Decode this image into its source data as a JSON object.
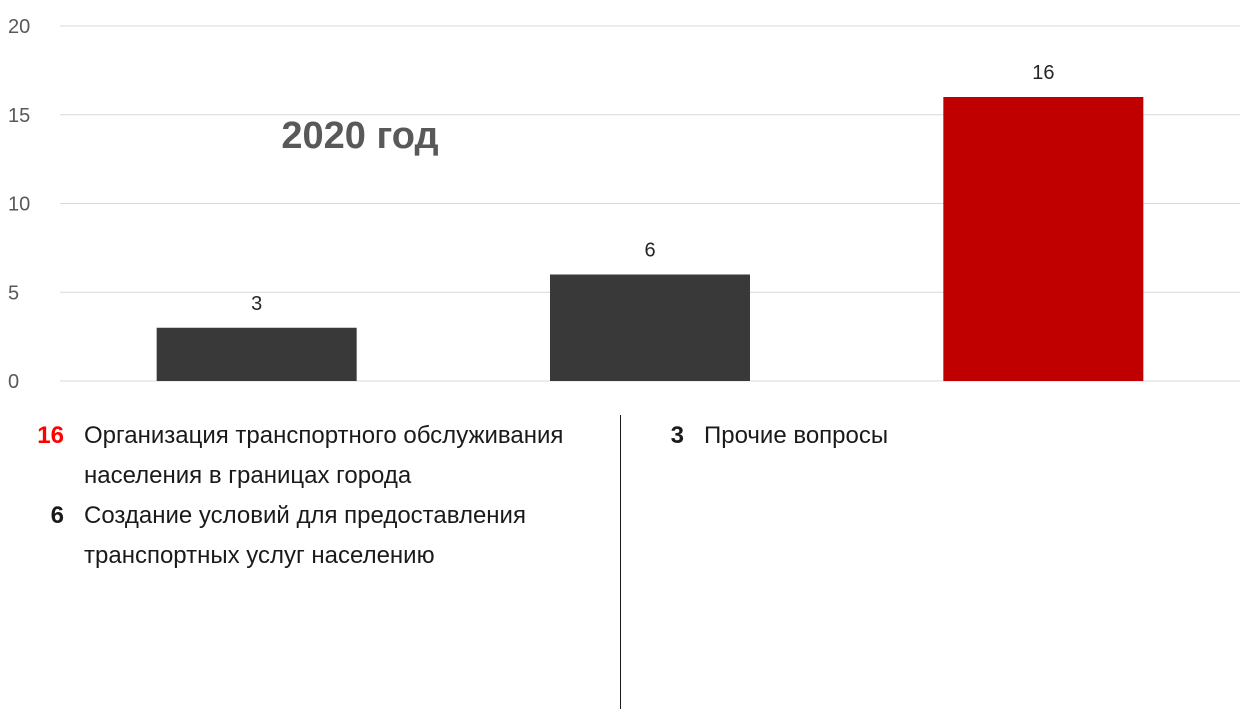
{
  "chart_data": {
    "type": "bar",
    "title": "2020 год",
    "categories": [
      "Прочие вопросы",
      "Создание условий для предоставления транспортных услуг населению",
      "Организация транспортного обслуживания населения в границах города"
    ],
    "values": [
      3,
      6,
      16
    ],
    "bar_colors": [
      "#3a3939",
      "#3a3939",
      "#c00000"
    ],
    "ylim": [
      0,
      20
    ],
    "yticks": [
      0,
      5,
      10,
      15,
      20
    ],
    "grid": true,
    "data_labels": [
      "3",
      "6",
      "16"
    ]
  },
  "legend": {
    "left": [
      {
        "value": "16",
        "text": "Организация транспортного обслуживания населения в границах города",
        "value_color": "#ff0000"
      },
      {
        "value": "6",
        "text": "Создание условий для предоставления транспортных услуг населению",
        "value_color": "#1a1a1a"
      }
    ],
    "right": [
      {
        "value": "3",
        "text": "Прочие вопросы",
        "value_color": "#1a1a1a"
      }
    ]
  },
  "colors": {
    "grid": "#d9d9d9",
    "axis_text": "#595959",
    "title": "#595959",
    "highlight": "#c00000"
  }
}
